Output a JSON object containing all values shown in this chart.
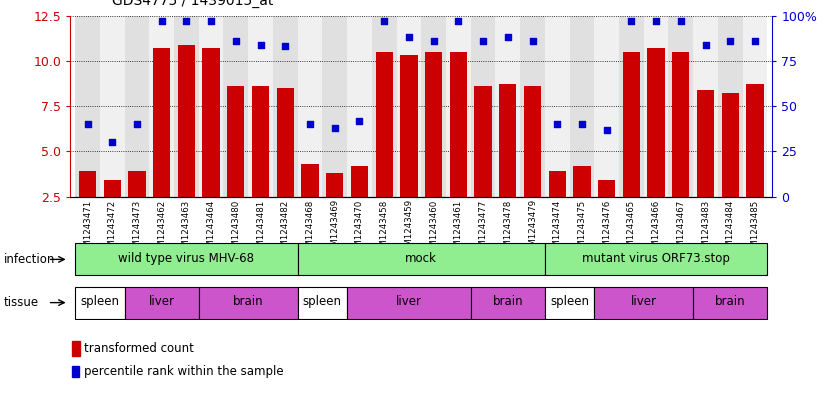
{
  "title": "GDS4775 / 1439015_at",
  "samples": [
    "GSM1243471",
    "GSM1243472",
    "GSM1243473",
    "GSM1243462",
    "GSM1243463",
    "GSM1243464",
    "GSM1243480",
    "GSM1243481",
    "GSM1243482",
    "GSM1243468",
    "GSM1243469",
    "GSM1243470",
    "GSM1243458",
    "GSM1243459",
    "GSM1243460",
    "GSM1243461",
    "GSM1243477",
    "GSM1243478",
    "GSM1243479",
    "GSM1243474",
    "GSM1243475",
    "GSM1243476",
    "GSM1243465",
    "GSM1243466",
    "GSM1243467",
    "GSM1243483",
    "GSM1243484",
    "GSM1243485"
  ],
  "bar_values": [
    3.9,
    3.4,
    3.9,
    10.7,
    10.9,
    10.7,
    8.6,
    8.6,
    8.5,
    4.3,
    3.8,
    4.2,
    10.5,
    10.3,
    10.5,
    10.5,
    8.6,
    8.7,
    8.6,
    3.9,
    4.2,
    3.4,
    10.5,
    10.7,
    10.5,
    8.4,
    8.2,
    8.7
  ],
  "dot_values_pct": [
    40,
    30,
    40,
    97,
    97,
    97,
    86,
    84,
    83,
    40,
    38,
    42,
    97,
    88,
    86,
    97,
    86,
    88,
    86,
    40,
    40,
    37,
    97,
    97,
    97,
    84,
    86,
    86
  ],
  "ylim_left": [
    2.5,
    12.5
  ],
  "ylim_right": [
    0,
    100
  ],
  "yticks_left": [
    2.5,
    5.0,
    7.5,
    10.0,
    12.5
  ],
  "yticks_right_vals": [
    0,
    25,
    50,
    75,
    100
  ],
  "yticks_right_labels": [
    "0",
    "25",
    "50",
    "75",
    "100%"
  ],
  "bar_color": "#cc0000",
  "dot_color": "#0000cc",
  "infection_groups": [
    {
      "label": "wild type virus MHV-68",
      "start": 0,
      "end": 9
    },
    {
      "label": "mock",
      "start": 9,
      "end": 19
    },
    {
      "label": "mutant virus ORF73.stop",
      "start": 19,
      "end": 28
    }
  ],
  "tissue_groups": [
    {
      "label": "spleen",
      "start": 0,
      "end": 2,
      "color": "#ffffff"
    },
    {
      "label": "liver",
      "start": 2,
      "end": 5,
      "color": "#cc55cc"
    },
    {
      "label": "brain",
      "start": 5,
      "end": 9,
      "color": "#cc55cc"
    },
    {
      "label": "spleen",
      "start": 9,
      "end": 11,
      "color": "#ffffff"
    },
    {
      "label": "liver",
      "start": 11,
      "end": 16,
      "color": "#cc55cc"
    },
    {
      "label": "brain",
      "start": 16,
      "end": 19,
      "color": "#cc55cc"
    },
    {
      "label": "spleen",
      "start": 19,
      "end": 21,
      "color": "#ffffff"
    },
    {
      "label": "liver",
      "start": 21,
      "end": 25,
      "color": "#cc55cc"
    },
    {
      "label": "brain",
      "start": 25,
      "end": 28,
      "color": "#cc55cc"
    }
  ],
  "infection_color": "#90ee90",
  "bg_color_even": "#e0e0e0",
  "bg_color_odd": "#f0f0f0",
  "legend_bar_label": "transformed count",
  "legend_dot_label": "percentile rank within the sample"
}
